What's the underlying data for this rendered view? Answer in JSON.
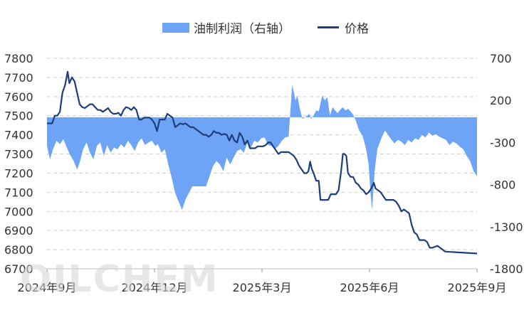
{
  "chart_data": {
    "type": "line",
    "title": "",
    "watermark": "OILCHEM",
    "legend_position": "top-center",
    "grid": true,
    "x_ticks": [
      "2024年9月",
      "2024年12月",
      "2025年3月",
      "2025年6月",
      "2025年9月"
    ],
    "y_left": {
      "min": 6700,
      "max": 7800,
      "ticks": [
        6700,
        6800,
        6900,
        7000,
        7100,
        7200,
        7300,
        7400,
        7500,
        7600,
        7700,
        7800
      ]
    },
    "y_right": {
      "min": -1800,
      "max": 700,
      "ticks": [
        -1800,
        -1300,
        -800,
        -300,
        200,
        700
      ]
    },
    "series": [
      {
        "name": "油制利润（右轴）",
        "type": "area",
        "axis": "right",
        "color": "#6ea4f5",
        "values": [
          [
            0,
            -340
          ],
          [
            0.007,
            -500
          ],
          [
            0.014,
            -380
          ],
          [
            0.022,
            -280
          ],
          [
            0.03,
            -320
          ],
          [
            0.038,
            -260
          ],
          [
            0.046,
            -360
          ],
          [
            0.054,
            -450
          ],
          [
            0.062,
            -520
          ],
          [
            0.07,
            -620
          ],
          [
            0.076,
            -540
          ],
          [
            0.084,
            -380
          ],
          [
            0.092,
            -300
          ],
          [
            0.1,
            -420
          ],
          [
            0.108,
            -500
          ],
          [
            0.116,
            -340
          ],
          [
            0.124,
            -300
          ],
          [
            0.132,
            -460
          ],
          [
            0.14,
            -330
          ],
          [
            0.148,
            -420
          ],
          [
            0.156,
            -360
          ],
          [
            0.164,
            -380
          ],
          [
            0.172,
            -320
          ],
          [
            0.18,
            -360
          ],
          [
            0.188,
            -280
          ],
          [
            0.196,
            -330
          ],
          [
            0.204,
            -400
          ],
          [
            0.212,
            -300
          ],
          [
            0.22,
            -250
          ],
          [
            0.228,
            -330
          ],
          [
            0.236,
            -300
          ],
          [
            0.244,
            -280
          ],
          [
            0.252,
            -340
          ],
          [
            0.258,
            -320
          ],
          [
            0.266,
            -420
          ],
          [
            0.274,
            -380
          ],
          [
            0.282,
            -560
          ],
          [
            0.29,
            -720
          ],
          [
            0.298,
            -900
          ],
          [
            0.306,
            -1000
          ],
          [
            0.314,
            -1100
          ],
          [
            0.322,
            -980
          ],
          [
            0.33,
            -900
          ],
          [
            0.338,
            -820
          ],
          [
            0.346,
            -820
          ],
          [
            0.354,
            -820
          ],
          [
            0.362,
            -820
          ],
          [
            0.37,
            -820
          ],
          [
            0.378,
            -700
          ],
          [
            0.386,
            -580
          ],
          [
            0.394,
            -520
          ],
          [
            0.402,
            -560
          ],
          [
            0.41,
            -640
          ],
          [
            0.418,
            -480
          ],
          [
            0.426,
            -560
          ],
          [
            0.434,
            -480
          ],
          [
            0.442,
            -400
          ],
          [
            0.45,
            -380
          ],
          [
            0.458,
            -420
          ],
          [
            0.466,
            -300
          ],
          [
            0.474,
            -360
          ],
          [
            0.482,
            -280
          ],
          [
            0.49,
            -300
          ],
          [
            0.498,
            -250
          ],
          [
            0.506,
            -240
          ],
          [
            0.514,
            -330
          ],
          [
            0.522,
            -340
          ],
          [
            0.53,
            -380
          ],
          [
            0.538,
            -340
          ],
          [
            0.546,
            -280
          ],
          [
            0.554,
            -240
          ],
          [
            0.562,
            -230
          ],
          [
            0.57,
            380
          ],
          [
            0.574,
            300
          ],
          [
            0.578,
            200
          ],
          [
            0.582,
            260
          ],
          [
            0.588,
            100
          ],
          [
            0.594,
            -20
          ],
          [
            0.6,
            0
          ],
          [
            0.606,
            20
          ],
          [
            0.61,
            40
          ],
          [
            0.614,
            -20
          ],
          [
            0.62,
            20
          ],
          [
            0.626,
            80
          ],
          [
            0.632,
            70
          ],
          [
            0.64,
            260
          ],
          [
            0.646,
            200
          ],
          [
            0.652,
            240
          ],
          [
            0.658,
            20
          ],
          [
            0.664,
            120
          ],
          [
            0.67,
            80
          ],
          [
            0.676,
            50
          ],
          [
            0.682,
            90
          ],
          [
            0.688,
            120
          ],
          [
            0.694,
            80
          ],
          [
            0.7,
            100
          ],
          [
            0.706,
            70
          ],
          [
            0.712,
            30
          ],
          [
            0.718,
            -40
          ],
          [
            0.726,
            -160
          ],
          [
            0.734,
            -220
          ],
          [
            0.742,
            -380
          ],
          [
            0.748,
            -560
          ],
          [
            0.752,
            -880
          ],
          [
            0.756,
            -1100
          ],
          [
            0.762,
            -640
          ],
          [
            0.768,
            -380
          ],
          [
            0.774,
            -300
          ],
          [
            0.78,
            -220
          ],
          [
            0.786,
            -160
          ],
          [
            0.792,
            -200
          ],
          [
            0.8,
            -260
          ],
          [
            0.808,
            -310
          ],
          [
            0.816,
            -270
          ],
          [
            0.824,
            -290
          ],
          [
            0.832,
            -330
          ],
          [
            0.84,
            -270
          ],
          [
            0.848,
            -300
          ],
          [
            0.856,
            -250
          ],
          [
            0.864,
            -270
          ],
          [
            0.872,
            -210
          ],
          [
            0.88,
            -240
          ],
          [
            0.888,
            -180
          ],
          [
            0.896,
            -220
          ],
          [
            0.904,
            -200
          ],
          [
            0.912,
            -230
          ],
          [
            0.92,
            -250
          ],
          [
            0.928,
            -270
          ],
          [
            0.936,
            -330
          ],
          [
            0.944,
            -290
          ],
          [
            0.952,
            -310
          ],
          [
            0.96,
            -350
          ],
          [
            0.968,
            -380
          ],
          [
            0.976,
            -460
          ],
          [
            0.984,
            -520
          ],
          [
            0.992,
            -640
          ],
          [
            1,
            -700
          ]
        ]
      },
      {
        "name": "价格",
        "type": "line",
        "axis": "left",
        "color": "#1f3d7a",
        "values": [
          [
            0,
            7460
          ],
          [
            0.006,
            7460
          ],
          [
            0.012,
            7460
          ],
          [
            0.018,
            7500
          ],
          [
            0.024,
            7500
          ],
          [
            0.03,
            7520
          ],
          [
            0.036,
            7620
          ],
          [
            0.042,
            7660
          ],
          [
            0.048,
            7730
          ],
          [
            0.052,
            7670
          ],
          [
            0.058,
            7700
          ],
          [
            0.064,
            7680
          ],
          [
            0.07,
            7620
          ],
          [
            0.076,
            7560
          ],
          [
            0.082,
            7545
          ],
          [
            0.088,
            7540
          ],
          [
            0.094,
            7550
          ],
          [
            0.1,
            7560
          ],
          [
            0.106,
            7560
          ],
          [
            0.112,
            7545
          ],
          [
            0.118,
            7530
          ],
          [
            0.124,
            7530
          ],
          [
            0.13,
            7520
          ],
          [
            0.136,
            7530
          ],
          [
            0.142,
            7540
          ],
          [
            0.148,
            7520
          ],
          [
            0.154,
            7510
          ],
          [
            0.16,
            7510
          ],
          [
            0.166,
            7515
          ],
          [
            0.172,
            7500
          ],
          [
            0.178,
            7530
          ],
          [
            0.184,
            7545
          ],
          [
            0.19,
            7540
          ],
          [
            0.196,
            7530
          ],
          [
            0.202,
            7545
          ],
          [
            0.208,
            7530
          ],
          [
            0.214,
            7480
          ],
          [
            0.22,
            7480
          ],
          [
            0.226,
            7490
          ],
          [
            0.232,
            7490
          ],
          [
            0.238,
            7490
          ],
          [
            0.244,
            7480
          ],
          [
            0.25,
            7460
          ],
          [
            0.256,
            7420
          ],
          [
            0.262,
            7480
          ],
          [
            0.268,
            7480
          ],
          [
            0.274,
            7480
          ],
          [
            0.28,
            7510
          ],
          [
            0.286,
            7500
          ],
          [
            0.292,
            7490
          ],
          [
            0.298,
            7440
          ],
          [
            0.304,
            7450
          ],
          [
            0.31,
            7460
          ],
          [
            0.316,
            7455
          ],
          [
            0.322,
            7460
          ],
          [
            0.328,
            7450
          ],
          [
            0.334,
            7440
          ],
          [
            0.34,
            7440
          ],
          [
            0.346,
            7430
          ],
          [
            0.352,
            7420
          ],
          [
            0.358,
            7410
          ],
          [
            0.364,
            7400
          ],
          [
            0.37,
            7400
          ],
          [
            0.376,
            7390
          ],
          [
            0.382,
            7400
          ],
          [
            0.388,
            7420
          ],
          [
            0.394,
            7410
          ],
          [
            0.4,
            7410
          ],
          [
            0.406,
            7400
          ],
          [
            0.412,
            7405
          ],
          [
            0.418,
            7400
          ],
          [
            0.424,
            7370
          ],
          [
            0.43,
            7400
          ],
          [
            0.436,
            7370
          ],
          [
            0.442,
            7360
          ],
          [
            0.448,
            7410
          ],
          [
            0.454,
            7390
          ],
          [
            0.46,
            7350
          ],
          [
            0.466,
            7370
          ],
          [
            0.472,
            7330
          ],
          [
            0.478,
            7330
          ],
          [
            0.484,
            7330
          ],
          [
            0.49,
            7340
          ],
          [
            0.496,
            7340
          ],
          [
            0.502,
            7340
          ],
          [
            0.508,
            7345
          ],
          [
            0.514,
            7360
          ],
          [
            0.52,
            7360
          ],
          [
            0.526,
            7340
          ],
          [
            0.532,
            7320
          ],
          [
            0.538,
            7300
          ],
          [
            0.544,
            7310
          ],
          [
            0.55,
            7310
          ],
          [
            0.556,
            7310
          ],
          [
            0.562,
            7310
          ],
          [
            0.568,
            7300
          ],
          [
            0.574,
            7290
          ],
          [
            0.58,
            7270
          ],
          [
            0.586,
            7240
          ],
          [
            0.592,
            7220
          ],
          [
            0.598,
            7200
          ],
          [
            0.604,
            7200
          ],
          [
            0.608,
            7210
          ],
          [
            0.612,
            7260
          ],
          [
            0.616,
            7220
          ],
          [
            0.62,
            7200
          ],
          [
            0.626,
            7160
          ],
          [
            0.632,
            7160
          ],
          [
            0.636,
            7060
          ],
          [
            0.642,
            7060
          ],
          [
            0.648,
            7060
          ],
          [
            0.654,
            7060
          ],
          [
            0.66,
            7090
          ],
          [
            0.666,
            7090
          ],
          [
            0.672,
            7090
          ],
          [
            0.678,
            7110
          ],
          [
            0.684,
            7210
          ],
          [
            0.688,
            7300
          ],
          [
            0.692,
            7300
          ],
          [
            0.696,
            7290
          ],
          [
            0.7,
            7200
          ],
          [
            0.706,
            7180
          ],
          [
            0.712,
            7180
          ],
          [
            0.718,
            7150
          ],
          [
            0.724,
            7140
          ],
          [
            0.73,
            7120
          ],
          [
            0.736,
            7110
          ],
          [
            0.742,
            7090
          ],
          [
            0.748,
            7100
          ],
          [
            0.754,
            7120
          ],
          [
            0.76,
            7150
          ],
          [
            0.764,
            7120
          ],
          [
            0.77,
            7110
          ],
          [
            0.776,
            7100
          ],
          [
            0.782,
            7080
          ],
          [
            0.788,
            7060
          ],
          [
            0.794,
            7060
          ],
          [
            0.8,
            7060
          ],
          [
            0.806,
            7060
          ],
          [
            0.812,
            7050
          ],
          [
            0.818,
            7030
          ],
          [
            0.824,
            7000
          ],
          [
            0.83,
            7010
          ],
          [
            0.836,
            7000
          ],
          [
            0.842,
            6990
          ],
          [
            0.848,
            6930
          ],
          [
            0.854,
            6890
          ],
          [
            0.86,
            6880
          ],
          [
            0.866,
            6850
          ],
          [
            0.872,
            6850
          ],
          [
            0.878,
            6850
          ],
          [
            0.884,
            6840
          ],
          [
            0.89,
            6810
          ],
          [
            0.896,
            6810
          ],
          [
            0.902,
            6815
          ],
          [
            0.908,
            6820
          ],
          [
            0.914,
            6810
          ],
          [
            0.92,
            6800
          ],
          [
            0.926,
            6790
          ],
          [
            1,
            6780
          ]
        ]
      }
    ]
  },
  "legend": {
    "area_label": "油制利润（右轴）",
    "line_label": "价格",
    "area_color": "#6ea4f5",
    "line_color": "#1f3d7a"
  }
}
